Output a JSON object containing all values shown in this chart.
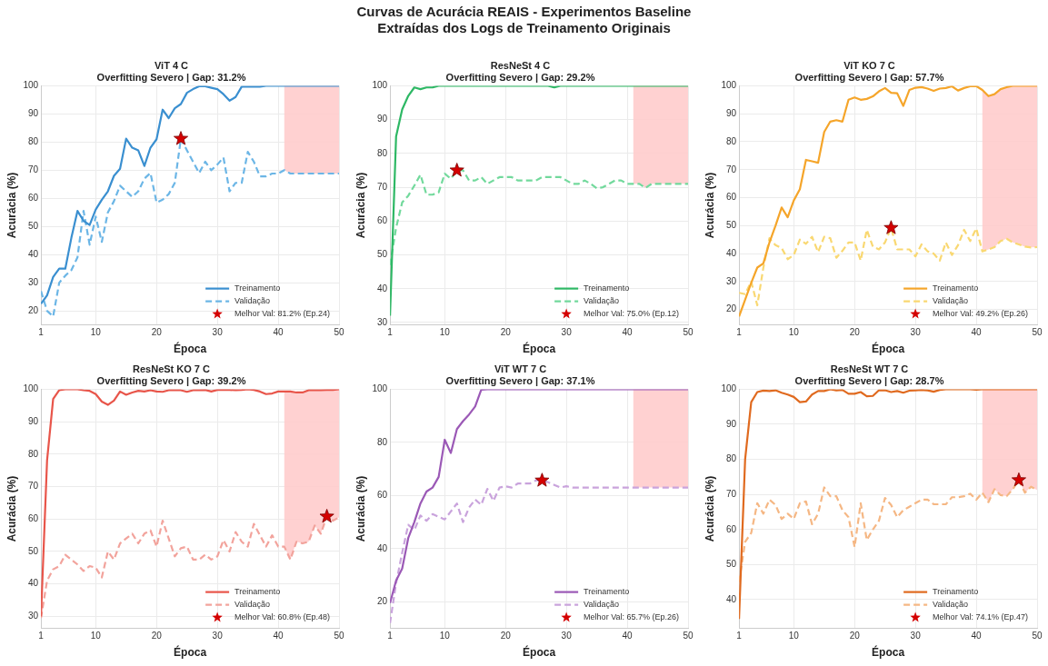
{
  "chart_data": [
    {
      "type": "other",
      "title": "Curvas de Acurácia REAIS - Experimentos Baseline",
      "subtitle": "Extraídas dos Logs de Treinamento Originais"
    },
    {
      "type": "line",
      "title": "ViT 4 C",
      "subtitle": "Overfitting Severo | Gap: 31.2%",
      "xlabel": "Época",
      "ylabel": "Acurácia (%)",
      "x": [
        1,
        2,
        3,
        4,
        5,
        6,
        7,
        8,
        9,
        10,
        11,
        12,
        13,
        14,
        15,
        16,
        17,
        18,
        19,
        20,
        21,
        22,
        23,
        24,
        25,
        26,
        27,
        28,
        29,
        30,
        31,
        32,
        33,
        34,
        35,
        36,
        37,
        38,
        39,
        40,
        41,
        42,
        43,
        44,
        45,
        46,
        47,
        48,
        49,
        50
      ],
      "series": [
        {
          "name": "Treinamento",
          "type": "line",
          "line_style": "solid",
          "color": "#3a8fd0",
          "values": [
            22.5,
            25.5,
            32,
            35,
            35,
            46,
            55.5,
            52,
            50.5,
            56,
            59.5,
            62.5,
            68,
            70.5,
            81.2,
            78,
            77,
            71.5,
            78,
            81,
            91.5,
            88.5,
            92,
            93.5,
            97.5,
            98.8,
            99.8,
            99.8,
            99.3,
            98.8,
            97,
            94.7,
            96,
            99.7,
            99.7,
            99.7,
            99.7,
            100,
            100,
            100,
            100,
            100,
            100,
            100,
            100,
            100,
            100,
            100,
            100,
            100
          ]
        },
        {
          "name": "Validação",
          "type": "line",
          "line_style": "dashed",
          "color": "#6cb6e6",
          "values": [
            27,
            20,
            18,
            30,
            32.5,
            34.5,
            39,
            55.5,
            43.5,
            53.5,
            44.5,
            55,
            59,
            64.5,
            62.5,
            60.5,
            62.5,
            67,
            69,
            58.5,
            59.5,
            61.5,
            65.5,
            81.2,
            77,
            73,
            69,
            73,
            70,
            72,
            74.5,
            62.5,
            65.5,
            65.5,
            76.5,
            73,
            67.8,
            67.8,
            68.8,
            68.8,
            70,
            68.8,
            68.8,
            68.8,
            68.8,
            68.8,
            68.8,
            68.8,
            68.8,
            68.8
          ]
        },
        {
          "name": "Melhor Val: 81.2% (Ep.24)",
          "type": "scatter",
          "marker": "star",
          "color": "#d40000",
          "x": [
            24
          ],
          "values": [
            81.2
          ]
        }
      ],
      "bands": [
        {
          "axis": "x",
          "from": 41,
          "to": 50,
          "color": "#ffcccc"
        }
      ],
      "xlim": [
        1,
        50
      ],
      "xticks": [
        1,
        10,
        20,
        30,
        40,
        50
      ],
      "ylim": [
        15,
        100
      ],
      "yticks": [
        20,
        30,
        40,
        50,
        60,
        70,
        80,
        90,
        100
      ],
      "grid": true,
      "legend": "bottom right"
    },
    {
      "type": "line",
      "title": "ResNeSt 4 C",
      "subtitle": "Overfitting Severo | Gap: 29.2%",
      "xlabel": "Época",
      "ylabel": "Acurácia (%)",
      "x": [
        1,
        2,
        3,
        4,
        5,
        6,
        7,
        8,
        9,
        10,
        11,
        12,
        13,
        14,
        15,
        16,
        17,
        18,
        19,
        20,
        21,
        22,
        23,
        24,
        25,
        26,
        27,
        28,
        29,
        30,
        31,
        32,
        33,
        34,
        35,
        36,
        37,
        38,
        39,
        40,
        41,
        42,
        43,
        44,
        45,
        46,
        47,
        48,
        49,
        50
      ],
      "series": [
        {
          "name": "Treinamento",
          "type": "line",
          "line_style": "solid",
          "color": "#2eb865",
          "values": [
            32,
            85,
            93,
            97,
            99.5,
            99,
            99.5,
            99.5,
            100,
            100,
            100,
            100,
            100,
            100,
            100,
            100,
            100,
            100,
            100,
            100,
            100,
            100,
            100,
            100,
            100,
            100,
            100,
            99.5,
            100,
            100,
            100,
            100,
            100,
            100,
            100,
            100,
            100,
            100,
            100,
            100,
            100,
            100,
            100,
            100,
            100,
            100,
            100,
            100,
            100,
            100
          ]
        },
        {
          "name": "Validação",
          "type": "line",
          "line_style": "dashed",
          "color": "#72d99c",
          "values": [
            47,
            58,
            65.5,
            67.5,
            70.5,
            73.7,
            67.8,
            67.8,
            68.5,
            74,
            72.5,
            75,
            75,
            72,
            72,
            73,
            71,
            72,
            73,
            73,
            73,
            72,
            72,
            72,
            72,
            73,
            73,
            73,
            73,
            72,
            71,
            71,
            72,
            71,
            69.7,
            70,
            71,
            72,
            72,
            71,
            71,
            71,
            69.8,
            71,
            71,
            71,
            71,
            71,
            71,
            71
          ]
        },
        {
          "name": "Melhor Val: 75.0% (Ep.12)",
          "type": "scatter",
          "marker": "star",
          "color": "#d40000",
          "x": [
            12
          ],
          "values": [
            75
          ]
        }
      ],
      "bands": [
        {
          "axis": "x",
          "from": 41,
          "to": 50,
          "color": "#ffcccc"
        }
      ],
      "xlim": [
        1,
        50
      ],
      "xticks": [
        1,
        10,
        20,
        30,
        40,
        50
      ],
      "ylim": [
        29.3,
        100
      ],
      "yticks": [
        30,
        40,
        50,
        60,
        70,
        80,
        90,
        100
      ],
      "grid": true,
      "legend": "bottom right"
    },
    {
      "type": "line",
      "title": "ViT KO 7 C",
      "subtitle": "Overfitting Severo | Gap: 57.7%",
      "xlabel": "Época",
      "ylabel": "Acurácia (%)",
      "x": [
        1,
        2,
        3,
        4,
        5,
        6,
        7,
        8,
        9,
        10,
        11,
        12,
        13,
        14,
        15,
        16,
        17,
        18,
        19,
        20,
        21,
        22,
        23,
        24,
        25,
        26,
        27,
        28,
        29,
        30,
        31,
        32,
        33,
        34,
        35,
        36,
        37,
        38,
        39,
        40,
        41,
        42,
        43,
        44,
        45,
        46,
        47,
        48,
        49,
        50
      ],
      "series": [
        {
          "name": "Treinamento",
          "type": "line",
          "line_style": "solid",
          "color": "#f5a52a",
          "values": [
            17.5,
            23.5,
            29.5,
            35,
            36.5,
            44,
            50,
            56.5,
            53,
            59,
            63,
            73.5,
            73,
            72.5,
            83.5,
            87.2,
            87.7,
            87.2,
            95,
            95.8,
            95,
            95.3,
            96.2,
            98,
            99.2,
            97.5,
            97.3,
            92.8,
            98.5,
            99.3,
            99.5,
            99,
            98.2,
            99,
            99.2,
            99.8,
            98.3,
            99.2,
            99.8,
            99.9,
            98.5,
            96.3,
            97,
            98.8,
            99.5,
            100,
            100,
            100,
            100,
            100
          ]
        },
        {
          "name": "Validação",
          "type": "line",
          "line_style": "dashed",
          "color": "#f9d872",
          "values": [
            26,
            25.5,
            30,
            21.5,
            35,
            45.5,
            43,
            42,
            38,
            39.5,
            45,
            43.5,
            46,
            40.5,
            46,
            45.5,
            38.5,
            41,
            44,
            44,
            37.5,
            48.5,
            42.5,
            41.5,
            44,
            49.2,
            41.5,
            41.5,
            41.5,
            39,
            43.3,
            40.8,
            40,
            37.5,
            44,
            39.5,
            43,
            48.5,
            44.5,
            49,
            40.8,
            41.5,
            42.3,
            44.5,
            45.3,
            44,
            43.3,
            42.5,
            42.2,
            42.3
          ]
        },
        {
          "name": "Melhor Val: 49.2% (Ep.26)",
          "type": "scatter",
          "marker": "star",
          "color": "#d40000",
          "x": [
            26
          ],
          "values": [
            49.2
          ]
        }
      ],
      "bands": [
        {
          "axis": "x",
          "from": 41,
          "to": 50,
          "color": "#ffcccc"
        }
      ],
      "xlim": [
        1,
        50
      ],
      "xticks": [
        1,
        10,
        20,
        30,
        40,
        50
      ],
      "ylim": [
        14.5,
        100
      ],
      "yticks": [
        20,
        30,
        40,
        50,
        60,
        70,
        80,
        90,
        100
      ],
      "grid": true,
      "legend": "bottom right"
    },
    {
      "type": "line",
      "title": "ResNeSt KO 7 C",
      "subtitle": "Overfitting Severo | Gap: 39.2%",
      "xlabel": "Época",
      "ylabel": "Acurácia (%)",
      "x": [
        1,
        2,
        3,
        4,
        5,
        6,
        7,
        8,
        9,
        10,
        11,
        12,
        13,
        14,
        15,
        16,
        17,
        18,
        19,
        20,
        21,
        22,
        23,
        24,
        25,
        26,
        27,
        28,
        29,
        30,
        31,
        32,
        33,
        34,
        35,
        36,
        37,
        38,
        39,
        40,
        41,
        42,
        43,
        44,
        45,
        46,
        47,
        48,
        49,
        50
      ],
      "series": [
        {
          "name": "Treinamento",
          "type": "line",
          "line_style": "solid",
          "color": "#e8554a",
          "values": [
            30,
            78,
            97,
            99.7,
            100,
            100,
            100,
            99.7,
            99.5,
            98.5,
            96.2,
            95.2,
            96.5,
            99.3,
            98.3,
            99,
            99.5,
            99.3,
            99.7,
            99.3,
            99.2,
            99.7,
            99.7,
            99.7,
            99.2,
            99.7,
            99.7,
            99.8,
            99.3,
            99.8,
            99.8,
            99.8,
            99.7,
            99.8,
            100,
            99.8,
            99.3,
            98.5,
            98.7,
            99.3,
            99.3,
            99.3,
            99,
            99,
            99.7,
            99.7,
            99.7,
            99.8,
            99.8,
            100
          ]
        },
        {
          "name": "Validação",
          "type": "line",
          "line_style": "dashed",
          "color": "#f2a39c",
          "values": [
            29.5,
            41,
            44.5,
            45.5,
            49,
            47.5,
            46,
            44,
            45.5,
            45,
            42,
            50,
            47.5,
            52.5,
            54,
            55.5,
            52.5,
            55.5,
            56.5,
            51.5,
            59.5,
            54,
            48.5,
            51,
            51.5,
            47.5,
            47.5,
            49,
            47.5,
            48.5,
            53.5,
            50,
            56,
            53,
            51.5,
            58.5,
            55,
            51.5,
            55,
            51.5,
            51.5,
            47.5,
            53,
            52.5,
            53,
            58,
            55.5,
            60.8,
            59.5,
            60.5
          ]
        },
        {
          "name": "Melhor Val: 60.8% (Ep.48)",
          "type": "scatter",
          "marker": "star",
          "color": "#d40000",
          "x": [
            48
          ],
          "values": [
            60.8
          ]
        }
      ],
      "bands": [
        {
          "axis": "x",
          "from": 41,
          "to": 50,
          "color": "#ffcccc"
        }
      ],
      "xlim": [
        1,
        50
      ],
      "xticks": [
        1,
        10,
        20,
        30,
        40,
        50
      ],
      "ylim": [
        26.3,
        100
      ],
      "yticks": [
        30,
        40,
        50,
        60,
        70,
        80,
        90,
        100
      ],
      "grid": true,
      "legend": "bottom right"
    },
    {
      "type": "line",
      "title": "ViT WT 7 C",
      "subtitle": "Overfitting Severo | Gap: 37.1%",
      "xlabel": "Época",
      "ylabel": "Acurácia (%)",
      "x": [
        1,
        2,
        3,
        4,
        5,
        6,
        7,
        8,
        9,
        10,
        11,
        12,
        13,
        14,
        15,
        16,
        17,
        18,
        19,
        20,
        21,
        22,
        23,
        24,
        25,
        26,
        27,
        28,
        29,
        30,
        31,
        32,
        33,
        34,
        35,
        36,
        37,
        38,
        39,
        40,
        41,
        42,
        43,
        44,
        45,
        46,
        47,
        48,
        49,
        50
      ],
      "series": [
        {
          "name": "Treinamento",
          "type": "line",
          "line_style": "solid",
          "color": "#9b59b6",
          "values": [
            19.5,
            28,
            32.5,
            44,
            50,
            57,
            61.5,
            63,
            67,
            81,
            76,
            85,
            88,
            90.5,
            93.5,
            99.8,
            100,
            100,
            100,
            100,
            100,
            100,
            100,
            100,
            100,
            100,
            100,
            100,
            100,
            100,
            100,
            100,
            100,
            100,
            100,
            100,
            100,
            100,
            100,
            100,
            100,
            100,
            100,
            100,
            100,
            100,
            100,
            100,
            100,
            100
          ]
        },
        {
          "name": "Validação",
          "type": "line",
          "line_style": "dashed",
          "color": "#c9a3dc",
          "values": [
            12,
            27,
            38.5,
            49,
            47,
            52.5,
            50.5,
            53,
            52,
            51,
            54,
            57,
            50,
            55.5,
            58.5,
            56.5,
            62.5,
            58,
            63,
            63.5,
            63,
            64.5,
            64.5,
            64.5,
            65.7,
            65.7,
            65,
            64,
            63,
            63.5,
            63,
            63,
            63,
            63,
            63,
            63,
            63,
            63,
            63,
            63,
            63,
            63,
            63,
            63,
            63,
            63,
            63,
            63,
            63,
            63
          ]
        },
        {
          "name": "Melhor Val: 65.7% (Ep.26)",
          "type": "scatter",
          "marker": "star",
          "color": "#d40000",
          "x": [
            26
          ],
          "values": [
            65.7
          ]
        }
      ],
      "bands": [
        {
          "axis": "x",
          "from": 41,
          "to": 50,
          "color": "#ffcccc"
        }
      ],
      "xlim": [
        1,
        50
      ],
      "xticks": [
        1,
        10,
        20,
        30,
        40,
        50
      ],
      "ylim": [
        10,
        100
      ],
      "yticks": [
        20,
        40,
        60,
        80,
        100
      ],
      "grid": true,
      "legend": "bottom right"
    },
    {
      "type": "line",
      "title": "ResNeSt WT 7 C",
      "subtitle": "Overfitting Severo | Gap: 28.7%",
      "xlabel": "Época",
      "ylabel": "Acurácia (%)",
      "x": [
        1,
        2,
        3,
        4,
        5,
        6,
        7,
        8,
        9,
        10,
        11,
        12,
        13,
        14,
        15,
        16,
        17,
        18,
        19,
        20,
        21,
        22,
        23,
        24,
        25,
        26,
        27,
        28,
        29,
        30,
        31,
        32,
        33,
        34,
        35,
        36,
        37,
        38,
        39,
        40,
        41,
        42,
        43,
        44,
        45,
        46,
        47,
        48,
        49,
        50
      ],
      "series": [
        {
          "name": "Treinamento",
          "type": "line",
          "line_style": "solid",
          "color": "#e06a1f",
          "values": [
            34.5,
            80,
            96.3,
            99.2,
            99.6,
            99.5,
            99.7,
            99,
            98.5,
            97.8,
            96.3,
            96.5,
            98.5,
            99.5,
            99.5,
            100,
            99.7,
            99.8,
            98.7,
            98.7,
            99.2,
            98,
            98.1,
            99.7,
            99.7,
            99.2,
            99.5,
            99,
            99.6,
            99.7,
            99.8,
            99.7,
            99.3,
            99.8,
            100,
            100,
            100,
            100,
            100,
            99.9,
            100,
            100,
            100,
            100,
            100,
            100,
            100,
            100,
            100,
            100
          ]
        },
        {
          "name": "Validação",
          "type": "line",
          "line_style": "dashed",
          "color": "#f5b784",
          "values": [
            45,
            56.5,
            59,
            67.5,
            64.5,
            68.5,
            67,
            63,
            64.5,
            63,
            67.5,
            68,
            61.5,
            64.5,
            72,
            69.5,
            69.5,
            65.5,
            63.5,
            55,
            67.5,
            57,
            60,
            62.5,
            69,
            67,
            63.5,
            65.5,
            66.5,
            67.5,
            68.5,
            68.5,
            67.2,
            67.2,
            67.2,
            69.2,
            69.2,
            69.5,
            70.2,
            68.5,
            70.5,
            67.8,
            71.5,
            69.8,
            69.5,
            71.5,
            74.1,
            70.5,
            72.2,
            71.3
          ]
        },
        {
          "name": "Melhor Val: 74.1% (Ep.47)",
          "type": "scatter",
          "marker": "star",
          "color": "#d40000",
          "x": [
            47
          ],
          "values": [
            74.1
          ]
        }
      ],
      "bands": [
        {
          "axis": "x",
          "from": 41,
          "to": 50,
          "color": "#ffcccc"
        }
      ],
      "xlim": [
        1,
        50
      ],
      "xticks": [
        1,
        10,
        20,
        30,
        40,
        50
      ],
      "ylim": [
        31.8,
        100
      ],
      "yticks": [
        40,
        50,
        60,
        70,
        80,
        90,
        100
      ],
      "grid": true,
      "legend": "bottom right"
    }
  ]
}
